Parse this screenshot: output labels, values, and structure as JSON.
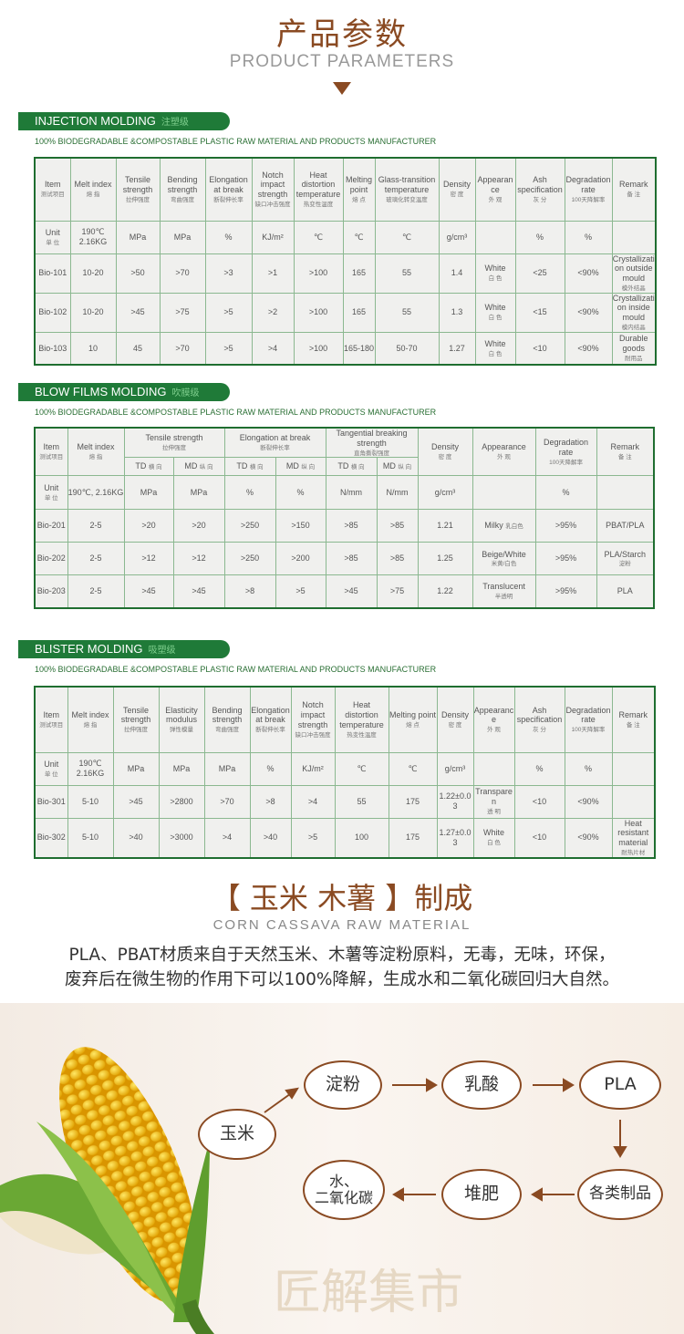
{
  "header": {
    "title_cn": "产品参数",
    "title_en": "PRODUCT PARAMETERS"
  },
  "tagline": "100% BIODEGRADABLE &COMPOSTABLE PLASTIC RAW MATERIAL AND PRODUCTS MANUFACTURER",
  "sections": [
    {
      "title": "INJECTION MOLDING",
      "title_cn": "注塑级",
      "header": [
        {
          "en": "Item",
          "zh": "测试项目"
        },
        {
          "en": "Melt index",
          "zh": "熔 指"
        },
        {
          "en": "Tensile strength",
          "zh": "拉伸强度"
        },
        {
          "en": "Bending strength",
          "zh": "弯曲强度"
        },
        {
          "en": "Elongation at break",
          "zh": "断裂伸长率"
        },
        {
          "en": "Notch impact strength",
          "zh": "缺口冲击强度"
        },
        {
          "en": "Heat distortion temperature",
          "zh": "热变性温度"
        },
        {
          "en": "Melting point",
          "zh": "熔 点"
        },
        {
          "en": "Glass-transition temperature",
          "zh": "玻璃化转变温度"
        },
        {
          "en": "Density",
          "zh": "密 度"
        },
        {
          "en": "Appearance",
          "zh": "外 观"
        },
        {
          "en": "Ash specification",
          "zh": "灰 分"
        },
        {
          "en": "Degradation rate",
          "zh": "100天降解率"
        },
        {
          "en": "Remark",
          "zh": "备 注"
        }
      ],
      "rows": [
        [
          {
            "en": "Unit",
            "zh": "单 位"
          },
          {
            "en": "190℃ 2.16KG"
          },
          {
            "en": "MPa"
          },
          {
            "en": "MPa"
          },
          {
            "en": "%"
          },
          {
            "en": "KJ/m²"
          },
          {
            "en": "℃"
          },
          {
            "en": "℃"
          },
          {
            "en": "℃"
          },
          {
            "en": "g/cm³"
          },
          {
            "en": ""
          },
          {
            "en": "%"
          },
          {
            "en": "%"
          },
          {
            "en": ""
          }
        ],
        [
          {
            "en": "Bio-101"
          },
          {
            "en": "10-20"
          },
          {
            "en": ">50"
          },
          {
            "en": ">70"
          },
          {
            "en": ">3"
          },
          {
            "en": ">1"
          },
          {
            "en": ">100"
          },
          {
            "en": "165"
          },
          {
            "en": "55"
          },
          {
            "en": "1.4"
          },
          {
            "en": "White",
            "zh": "白 色"
          },
          {
            "en": "<25"
          },
          {
            "en": "<90%"
          },
          {
            "en": "Crystallization outside mould",
            "zh": "模外结晶"
          }
        ],
        [
          {
            "en": "Bio-102"
          },
          {
            "en": "10-20"
          },
          {
            "en": ">45"
          },
          {
            "en": ">75"
          },
          {
            "en": ">5"
          },
          {
            "en": ">2"
          },
          {
            "en": ">100"
          },
          {
            "en": "165"
          },
          {
            "en": "55"
          },
          {
            "en": "1.3"
          },
          {
            "en": "White",
            "zh": "白 色"
          },
          {
            "en": "<15"
          },
          {
            "en": "<90%"
          },
          {
            "en": "Crystallization inside mould",
            "zh": "模内结晶"
          }
        ],
        [
          {
            "en": "Bio-103"
          },
          {
            "en": "10"
          },
          {
            "en": "45"
          },
          {
            "en": ">70"
          },
          {
            "en": ">5"
          },
          {
            "en": ">4"
          },
          {
            "en": ">100"
          },
          {
            "en": "165-180"
          },
          {
            "en": "50-70"
          },
          {
            "en": "1.27"
          },
          {
            "en": "White",
            "zh": "白 色"
          },
          {
            "en": "<10"
          },
          {
            "en": "<90%"
          },
          {
            "en": "Durable goods",
            "zh": "耐用品"
          }
        ]
      ]
    },
    {
      "title": "BLOW FILMS MOLDING",
      "title_cn": "吹膜级",
      "header_top": [
        {
          "en": "Item",
          "zh": "测试项目"
        },
        {
          "en": "Melt index",
          "zh": "熔 指"
        },
        {
          "en": "Tensile strength",
          "zh": "拉伸强度"
        },
        {
          "en": "Elongation at break",
          "zh": "断裂伸长率"
        },
        {
          "en": "Tangential breaking strength",
          "zh": "直角撕裂强度"
        },
        {
          "en": "Density",
          "zh": "密 度"
        },
        {
          "en": "Appearance",
          "zh": "外 观"
        },
        {
          "en": "Degradation rate",
          "zh": "100天降解率"
        },
        {
          "en": "Remark",
          "zh": "备 注"
        }
      ],
      "header_sub": [
        {
          "en": "TD",
          "zh": "横 向"
        },
        {
          "en": "MD",
          "zh": "纵 向"
        },
        {
          "en": "TD",
          "zh": "横 向"
        },
        {
          "en": "MD",
          "zh": "纵 向"
        },
        {
          "en": "TD",
          "zh": "横 向"
        },
        {
          "en": "MD",
          "zh": "纵 向"
        }
      ],
      "rows": [
        [
          {
            "en": "Unit",
            "zh": "单 位"
          },
          {
            "en": "190℃, 2.16KG"
          },
          {
            "en": "MPa"
          },
          {
            "en": "MPa"
          },
          {
            "en": "%"
          },
          {
            "en": "%"
          },
          {
            "en": "N/mm"
          },
          {
            "en": "N/mm"
          },
          {
            "en": "g/cm³"
          },
          {
            "en": ""
          },
          {
            "en": "%"
          },
          {
            "en": ""
          }
        ],
        [
          {
            "en": "Bio-201"
          },
          {
            "en": "2-5"
          },
          {
            "en": ">20"
          },
          {
            "en": ">20"
          },
          {
            "en": ">250"
          },
          {
            "en": ">150"
          },
          {
            "en": ">85"
          },
          {
            "en": ">85"
          },
          {
            "en": "1.21"
          },
          {
            "en": "Milky",
            "zhi": "乳白色"
          },
          {
            "en": ">95%"
          },
          {
            "en": "PBAT/PLA"
          }
        ],
        [
          {
            "en": "Bio-202"
          },
          {
            "en": "2-5"
          },
          {
            "en": ">12"
          },
          {
            "en": ">12"
          },
          {
            "en": ">250"
          },
          {
            "en": ">200"
          },
          {
            "en": ">85"
          },
          {
            "en": ">85"
          },
          {
            "en": "1.25"
          },
          {
            "en": "Beige/White",
            "zh": "米黄/白色"
          },
          {
            "en": ">95%"
          },
          {
            "en": "PLA/Starch",
            "zh": "淀粉"
          }
        ],
        [
          {
            "en": "Bio-203"
          },
          {
            "en": "2-5"
          },
          {
            "en": ">45"
          },
          {
            "en": ">45"
          },
          {
            "en": ">8"
          },
          {
            "en": ">5"
          },
          {
            "en": ">45"
          },
          {
            "en": ">75"
          },
          {
            "en": "1.22"
          },
          {
            "en": "Translucent",
            "zh": "半透明"
          },
          {
            "en": ">95%"
          },
          {
            "en": "PLA"
          }
        ]
      ]
    },
    {
      "title": "BLISTER MOLDING",
      "title_cn": "吸塑级",
      "header": [
        {
          "en": "Item",
          "zh": "测试项目"
        },
        {
          "en": "Melt index",
          "zh": "熔 指"
        },
        {
          "en": "Tensile strength",
          "zh": "拉伸强度"
        },
        {
          "en": "Elasticity modulus",
          "zh": "弹性模量"
        },
        {
          "en": "Bending strength",
          "zh": "弯曲强度"
        },
        {
          "en": "Elongation at break",
          "zh": "断裂伸长率"
        },
        {
          "en": "Notch impact strength",
          "zh": "缺口冲击强度"
        },
        {
          "en": "Heat distortion temperature",
          "zh": "热变性温度"
        },
        {
          "en": "Melting point",
          "zh": "熔 点"
        },
        {
          "en": "Density",
          "zh": "密 度"
        },
        {
          "en": "Appearance",
          "zh": "外 观"
        },
        {
          "en": "Ash specification",
          "zh": "灰 分"
        },
        {
          "en": "Degradation rate",
          "zh": "100天降解率"
        },
        {
          "en": "Remark",
          "zh": "备 注"
        }
      ],
      "rows": [
        [
          {
            "en": "Unit",
            "zh": "单 位"
          },
          {
            "en": "190℃ 2.16KG"
          },
          {
            "en": "MPa"
          },
          {
            "en": "MPa"
          },
          {
            "en": "MPa"
          },
          {
            "en": "%"
          },
          {
            "en": "KJ/m²"
          },
          {
            "en": "℃"
          },
          {
            "en": "℃"
          },
          {
            "en": "g/cm³"
          },
          {
            "en": ""
          },
          {
            "en": "%"
          },
          {
            "en": "%"
          },
          {
            "en": ""
          }
        ],
        [
          {
            "en": "Bio-301"
          },
          {
            "en": "5-10"
          },
          {
            "en": ">45"
          },
          {
            "en": ">2800"
          },
          {
            "en": ">70"
          },
          {
            "en": ">8"
          },
          {
            "en": ">4"
          },
          {
            "en": "55"
          },
          {
            "en": "175"
          },
          {
            "en": "1.22±0.03"
          },
          {
            "en": "Transparen",
            "zh": "透 明"
          },
          {
            "en": "<10"
          },
          {
            "en": "<90%"
          },
          {
            "en": ""
          }
        ],
        [
          {
            "en": "Bio-302"
          },
          {
            "en": "5-10"
          },
          {
            "en": ">40"
          },
          {
            "en": ">3000"
          },
          {
            "en": ">4"
          },
          {
            "en": ">40"
          },
          {
            "en": ">5"
          },
          {
            "en": "100"
          },
          {
            "en": "175"
          },
          {
            "en": "1.27±0.03"
          },
          {
            "en": "White",
            "zh": "白 色"
          },
          {
            "en": "<10"
          },
          {
            "en": "<90%"
          },
          {
            "en": "Heat resistant material",
            "zh": "耐热片材"
          }
        ]
      ]
    }
  ],
  "material": {
    "title": "【 玉米 木薯 】制成",
    "subtitle": "CORN CASSAVA RAW MATERIAL",
    "line1": "PLA、PBAT材质来自于天然玉米、木薯等淀粉原料，无毒，无味，环保，",
    "line2": "废弃后在微生物的作用下可以100%降解，生成水和二氧化碳回归大自然。"
  },
  "flow": {
    "corn": "玉米",
    "starch": "淀粉",
    "lactic": "乳酸",
    "pla": "PLA",
    "products": "各类制品",
    "compost": "堆肥",
    "water_co2_1": "水、",
    "water_co2_2": "二氧化碳"
  },
  "watermark": "匠解集市",
  "colors": {
    "brand_green": "#1f7a38",
    "accent_brown": "#8a4a22"
  }
}
